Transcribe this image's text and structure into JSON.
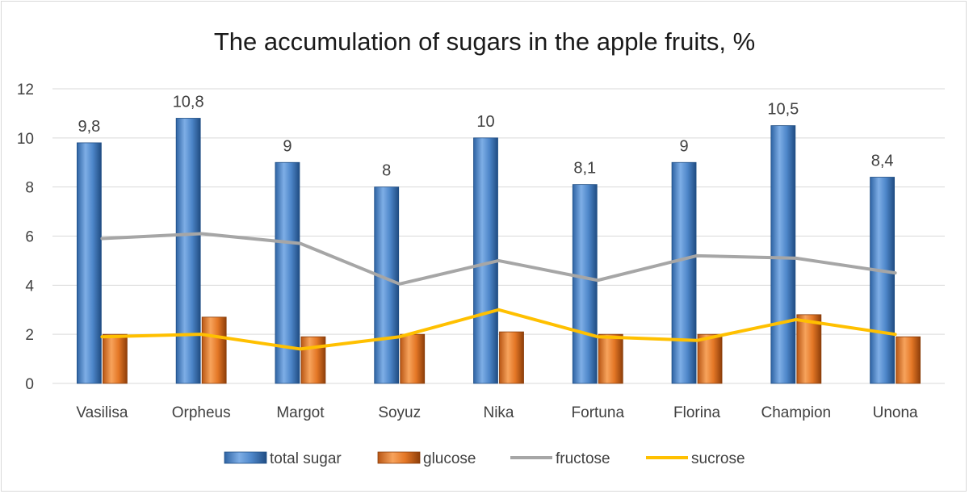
{
  "chart_data": {
    "type": "bar",
    "title": "The accumulation of sugars in the apple fruits, %",
    "xlabel": "",
    "ylabel": "",
    "ylim": [
      0,
      12
    ],
    "yticks": [
      0,
      2,
      4,
      6,
      8,
      10,
      12
    ],
    "grid": true,
    "legend_position": "bottom",
    "categories": [
      "Vasilisa",
      "Orpheus",
      "Margot",
      "Soyuz",
      "Nika",
      "Fortuna",
      "Florina",
      "Champion",
      "Unona"
    ],
    "series": [
      {
        "name": "total sugar",
        "type": "bar",
        "color": "#4a86c8",
        "values": [
          9.8,
          10.8,
          9,
          8,
          10,
          8.1,
          9,
          10.5,
          8.4
        ],
        "data_labels": [
          "9,8",
          "10,8",
          "9",
          "8",
          "10",
          "8,1",
          "9",
          "10,5",
          "8,4"
        ]
      },
      {
        "name": "glucose",
        "type": "bar",
        "color": "#e87a2e",
        "values": [
          2.0,
          2.7,
          1.9,
          2.0,
          2.1,
          2.0,
          2.0,
          2.8,
          1.9
        ]
      },
      {
        "name": "fructose",
        "type": "line",
        "color": "#a6a6a6",
        "values": [
          5.9,
          6.1,
          5.7,
          4.05,
          5.0,
          4.2,
          5.2,
          5.1,
          4.5
        ]
      },
      {
        "name": "sucrose",
        "type": "line",
        "color": "#ffc000",
        "values": [
          1.9,
          2.0,
          1.4,
          1.9,
          3.0,
          1.9,
          1.75,
          2.6,
          2.0
        ]
      }
    ]
  }
}
